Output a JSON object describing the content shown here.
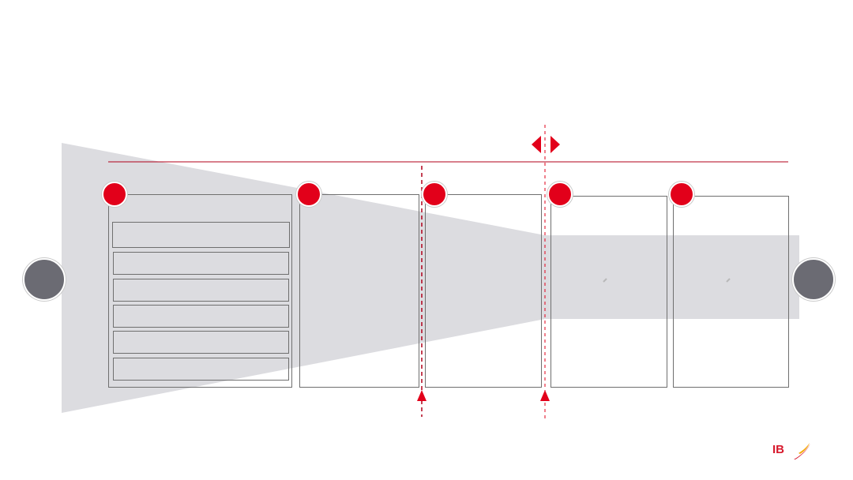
{
  "colors": {
    "accent": "#e2001a",
    "funnel": "#dcdce0",
    "box_border": "#6f6f6f",
    "node_gray": "#6b6b73"
  },
  "steps": [
    {
      "badge": ""
    },
    {
      "badge": ""
    },
    {
      "badge": ""
    },
    {
      "badge": ""
    },
    {
      "badge": ""
    }
  ],
  "step1_items": [
    "",
    "",
    "",
    "",
    "",
    ""
  ],
  "start_node": {
    "label": ""
  },
  "end_node": {
    "label": ""
  },
  "logo": {
    "text": "IB",
    "icon": "iberia-logo-icon"
  },
  "icons": {
    "divider_arrow": "left-right-arrow-icon",
    "marker_up": "up-arrow-icon",
    "small_mark": "pencil-mark-icon"
  }
}
